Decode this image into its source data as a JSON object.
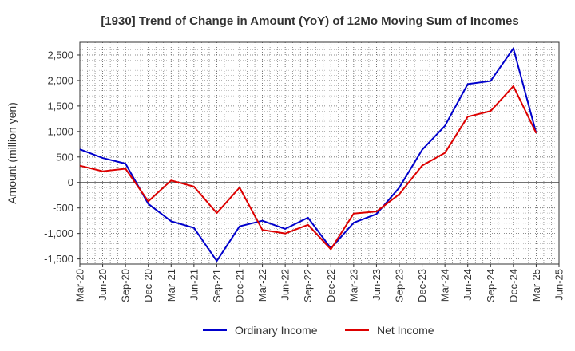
{
  "chart_data": {
    "type": "line",
    "title": "[1930]  Trend of Change in Amount (YoY) of 12Mo Moving Sum of Incomes",
    "xlabel": "",
    "ylabel": "Amount (million yen)",
    "ylim": [
      -1600,
      2750
    ],
    "yticks": [
      -1500,
      -1000,
      -500,
      0,
      500,
      1000,
      1500,
      2000,
      2500
    ],
    "ytick_labels": [
      "-1,500",
      "-1,000",
      "-500",
      "0",
      "500",
      "1,000",
      "1,500",
      "2,000",
      "2,500"
    ],
    "categories": [
      "Mar-20",
      "Jun-20",
      "Sep-20",
      "Dec-20",
      "Mar-21",
      "Jun-21",
      "Sep-21",
      "Dec-21",
      "Mar-22",
      "Jun-22",
      "Sep-22",
      "Dec-22",
      "Mar-23",
      "Jun-23",
      "Sep-23",
      "Dec-23",
      "Mar-24",
      "Jun-24",
      "Sep-24",
      "Dec-24",
      "Mar-25",
      "Jun-25"
    ],
    "grid": true,
    "legend": "bottom",
    "series": [
      {
        "name": "Ordinary Income",
        "color": "#0000cc",
        "values": [
          650,
          480,
          370,
          -420,
          -760,
          -890,
          -1540,
          -860,
          -750,
          -910,
          -690,
          -1290,
          -790,
          -620,
          -100,
          640,
          1110,
          1930,
          1990,
          2630,
          970,
          null
        ]
      },
      {
        "name": "Net Income",
        "color": "#dd0000",
        "values": [
          330,
          220,
          270,
          -370,
          40,
          -80,
          -600,
          -100,
          -930,
          -1000,
          -830,
          -1310,
          -610,
          -570,
          -230,
          330,
          580,
          1290,
          1400,
          1890,
          970,
          null
        ]
      }
    ]
  }
}
